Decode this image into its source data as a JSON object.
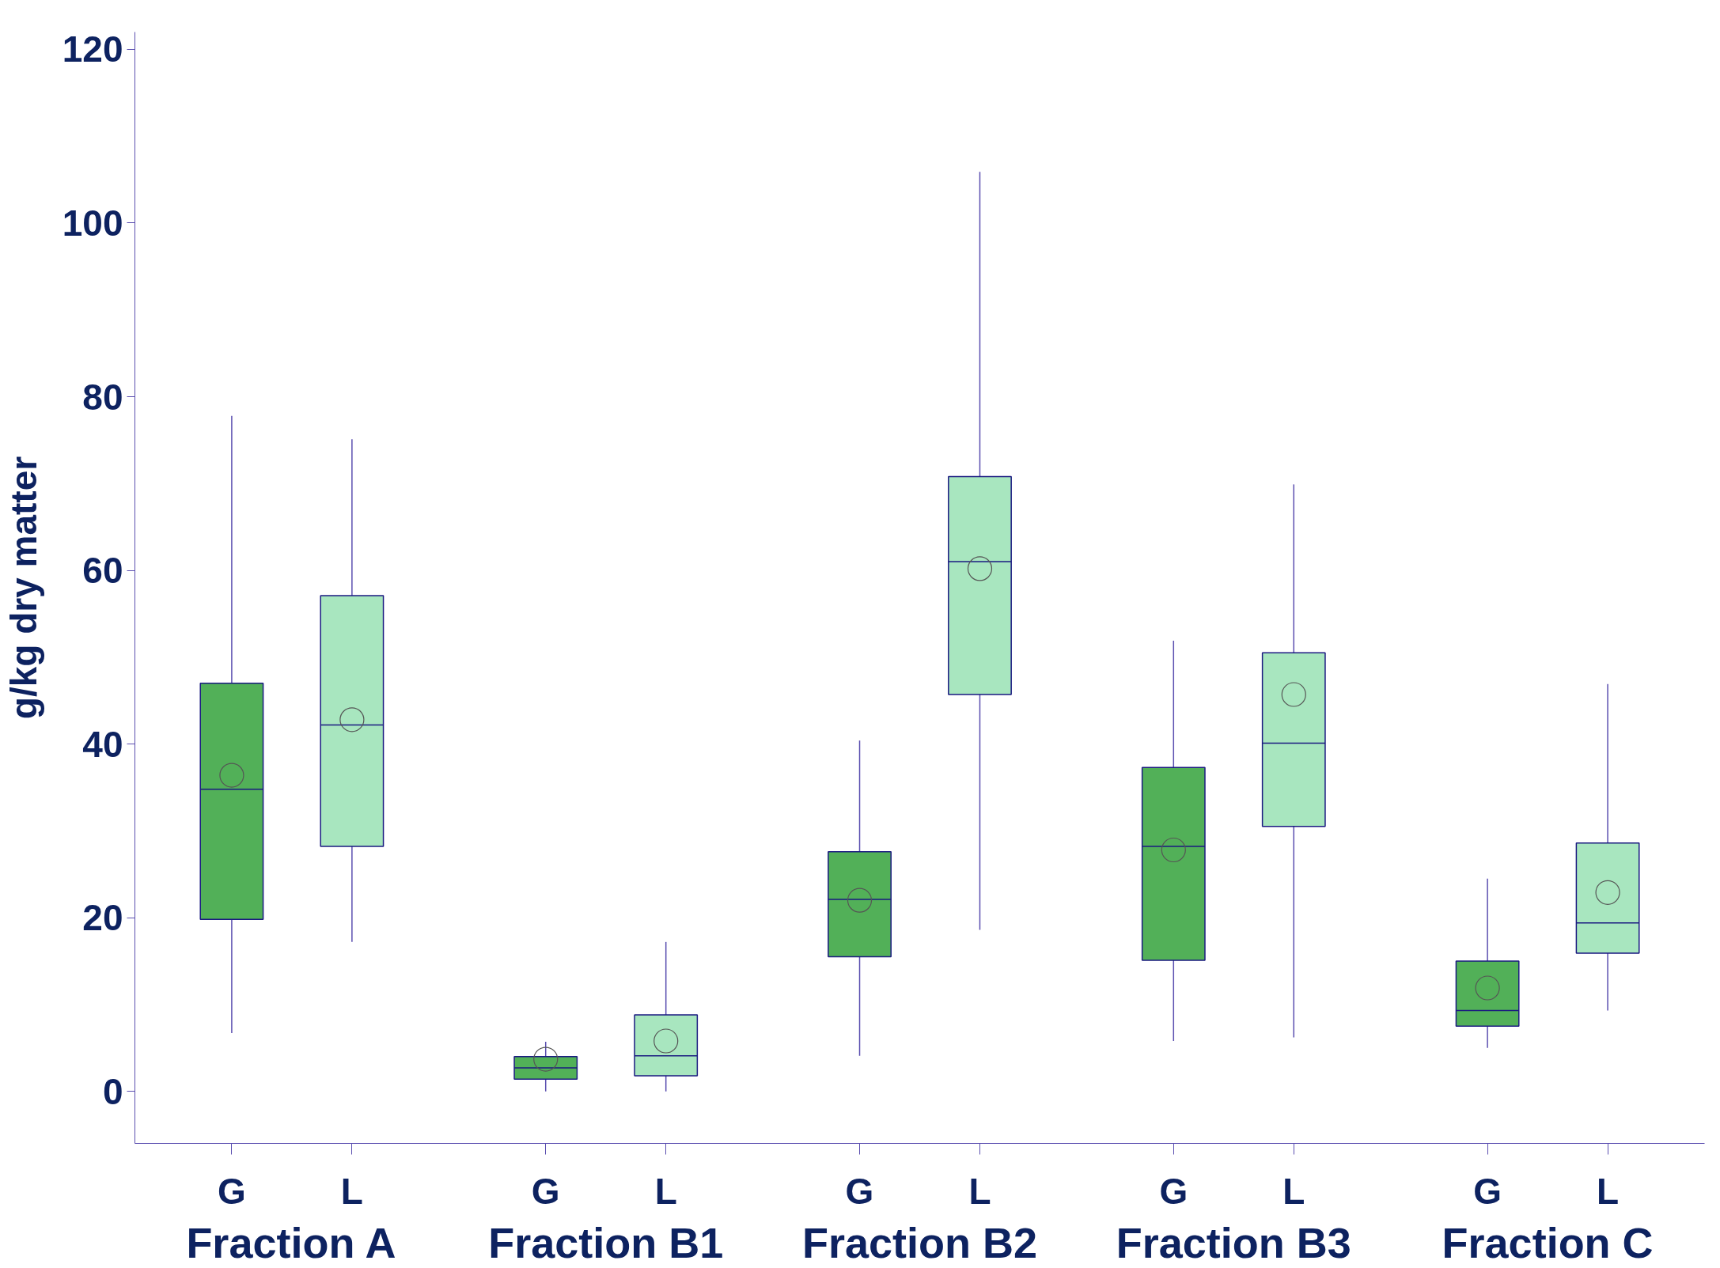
{
  "chart_data": {
    "type": "box",
    "ylabel": "g/kg dry matter",
    "categories": [
      "Fraction A",
      "Fraction B1",
      "Fraction B2",
      "Fraction B3",
      "Fraction C"
    ],
    "series": [
      {
        "name": "G",
        "color": "#52b058",
        "boxes": [
          {
            "low": 6.7,
            "q1": 19.8,
            "median": 34.8,
            "q3": 47.0,
            "high": 77.8,
            "mean": 36.4
          },
          {
            "low": 0,
            "q1": 1.4,
            "median": 2.7,
            "q3": 4.0,
            "high": 5.7,
            "mean": 3.7
          },
          {
            "low": 4.1,
            "q1": 15.5,
            "median": 22.1,
            "q3": 27.6,
            "high": 40.4,
            "mean": 22.0
          },
          {
            "low": 5.8,
            "q1": 15.1,
            "median": 28.2,
            "q3": 37.3,
            "high": 51.9,
            "mean": 27.8
          },
          {
            "low": 5.0,
            "q1": 7.5,
            "median": 9.3,
            "q3": 15.0,
            "high": 24.5,
            "mean": 11.9
          }
        ]
      },
      {
        "name": "L",
        "color": "#a8e6bf",
        "boxes": [
          {
            "low": 17.2,
            "q1": 28.2,
            "median": 42.2,
            "q3": 57.1,
            "high": 75.1,
            "mean": 42.8
          },
          {
            "low": 0,
            "q1": 1.8,
            "median": 4.1,
            "q3": 8.8,
            "high": 17.2,
            "mean": 5.8
          },
          {
            "low": 18.6,
            "q1": 45.7,
            "median": 61.0,
            "q3": 70.8,
            "high": 105.9,
            "mean": 60.2
          },
          {
            "low": 6.2,
            "q1": 30.5,
            "median": 40.1,
            "q3": 50.5,
            "high": 69.9,
            "mean": 45.7
          },
          {
            "low": 9.3,
            "q1": 15.9,
            "median": 19.4,
            "q3": 28.6,
            "high": 46.9,
            "mean": 22.9
          }
        ]
      }
    ],
    "ylim": [
      -6,
      122
    ],
    "yticks": [
      0,
      20,
      40,
      60,
      80,
      100,
      120
    ],
    "grid": false,
    "marker": "circle"
  }
}
